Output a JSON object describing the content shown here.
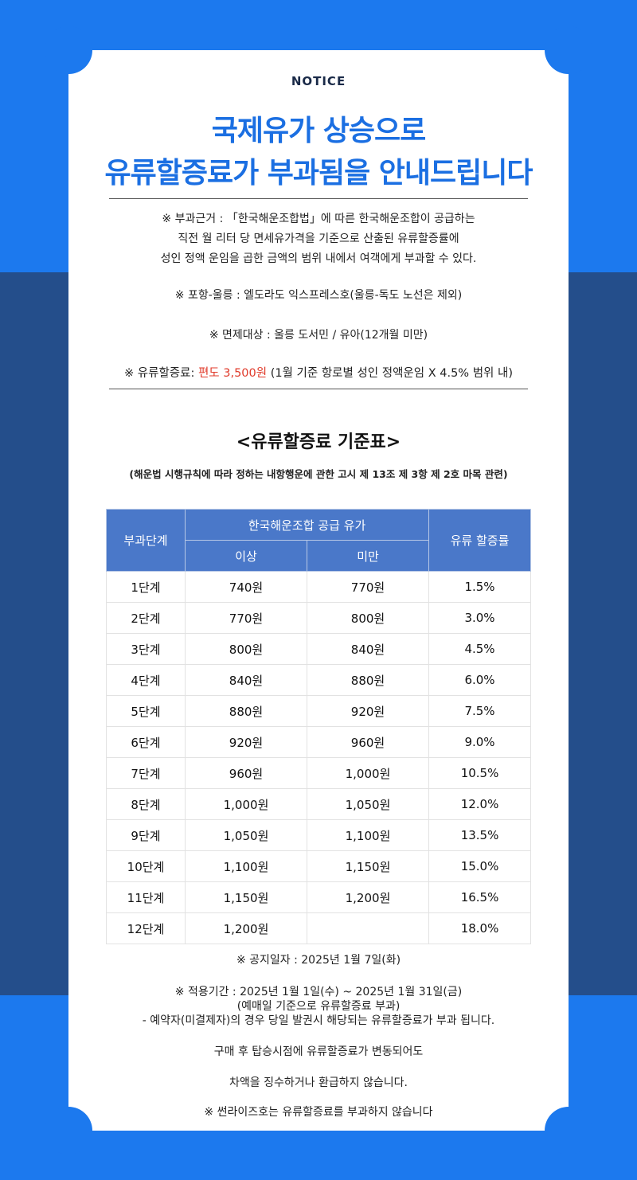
{
  "notice": "NOTICE",
  "title_line1": "국제유가 상승으로",
  "title_line2": "유류할증료가 부과됨을 안내드립니다",
  "basis_line1": "※ 부과근거 : 「한국해운조합법」에 따른 한국해운조합이 공급하는",
  "basis_line2": "직전 월 리터 당 면세유가격을 기준으로 산출된 유류할증률에",
  "basis_line3": "성인 정액 운임을 곱한 금액의 범위 내에서 여객에게 부과할 수 있다.",
  "route": "※ 포항-울릉 : 엘도라도 익스프레스호(울릉-독도 노선은 제외)",
  "exempt": "※ 면제대상 : 울릉 도서민 / 유아(12개월 미만)",
  "fee_prefix": "※ 유류할증료: ",
  "fee_amount": "편도 3,500원",
  "fee_suffix": " (1월 기준 항로별 성인 정액운임 X 4.5% 범위 내)",
  "table_title": "<유류할증료 기준표>",
  "table_note": "(해운법 시행규칙에 따라 정하는 내항행운에 관한 고시 제 13조 제 3항 제 2호 마목 관련)",
  "headers": {
    "stage": "부과단계",
    "supply": "한국해운조합 공급 유가",
    "min": "이상",
    "max": "미만",
    "rate": "유류 할증률"
  },
  "rows": [
    {
      "stage": "1단계",
      "min": "740원",
      "max": "770원",
      "rate": "1.5%"
    },
    {
      "stage": "2단계",
      "min": "770원",
      "max": "800원",
      "rate": "3.0%"
    },
    {
      "stage": "3단계",
      "min": "800원",
      "max": "840원",
      "rate": "4.5%"
    },
    {
      "stage": "4단계",
      "min": "840원",
      "max": "880원",
      "rate": "6.0%"
    },
    {
      "stage": "5단계",
      "min": "880원",
      "max": "920원",
      "rate": "7.5%"
    },
    {
      "stage": "6단계",
      "min": "920원",
      "max": "960원",
      "rate": "9.0%"
    },
    {
      "stage": "7단계",
      "min": "960원",
      "max": "1,000원",
      "rate": "10.5%"
    },
    {
      "stage": "8단계",
      "min": "1,000원",
      "max": "1,050원",
      "rate": "12.0%"
    },
    {
      "stage": "9단계",
      "min": "1,050원",
      "max": "1,100원",
      "rate": "13.5%"
    },
    {
      "stage": "10단계",
      "min": "1,100원",
      "max": "1,150원",
      "rate": "15.0%"
    },
    {
      "stage": "11단계",
      "min": "1,150원",
      "max": "1,200원",
      "rate": "16.5%"
    },
    {
      "stage": "12단계",
      "min": "1,200원",
      "max": "",
      "rate": "18.0%"
    }
  ],
  "announce_date": "※ 공지일자 : 2025년 1월 7일(화)",
  "period": "※ 적용기간 : 2025년 1월 1일(수) ~ 2025년 1월 31일(금)",
  "period_note": "(예매일 기준으로 유류할증료 부과)",
  "reservation": "- 예약자(미결제자)의 경우 당일 발권시 해당되는 유류할증료가 부과 됩니다.",
  "change_line1": "구매 후 탑승시점에 유류할증료가 변동되어도",
  "change_line2": "차액을 징수하거나 환급하지 않습니다.",
  "sunrise": "※ 썬라이즈호는 유류할증료를 부과하지 않습니다",
  "colors": {
    "brand_blue": "#1c79ee",
    "dark_blue": "#244e8b",
    "header_blue": "#4a78c9",
    "title_blue": "#1b6fe2",
    "accent_red": "#e03a2a"
  }
}
